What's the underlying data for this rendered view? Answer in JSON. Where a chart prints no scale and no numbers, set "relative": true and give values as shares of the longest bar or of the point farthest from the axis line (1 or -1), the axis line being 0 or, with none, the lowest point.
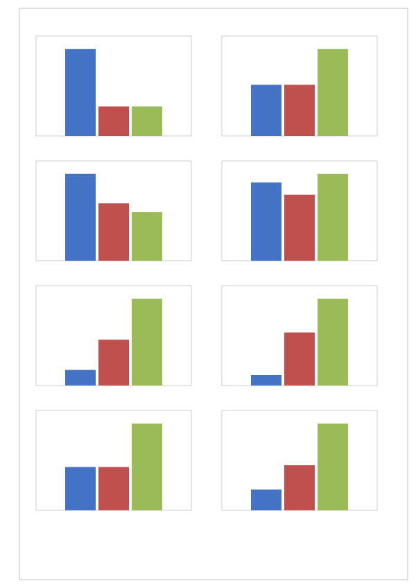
{
  "chart_data": [
    {
      "type": "bar",
      "relative": true,
      "categories": [
        null
      ],
      "series": [
        {
          "color": "#4472c4",
          "values": [
            1
          ]
        },
        {
          "color": "#c0504d",
          "values": [
            0.34
          ]
        },
        {
          "color": "#9bbb59",
          "values": [
            0.34
          ]
        }
      ]
    },
    {
      "type": "bar",
      "relative": true,
      "categories": [
        null
      ],
      "series": [
        {
          "color": "#4472c4",
          "values": [
            0.59
          ]
        },
        {
          "color": "#c0504d",
          "values": [
            0.59
          ]
        },
        {
          "color": "#9bbb59",
          "values": [
            1
          ]
        }
      ]
    },
    {
      "type": "bar",
      "relative": true,
      "categories": [
        null
      ],
      "series": [
        {
          "color": "#4472c4",
          "values": [
            1
          ]
        },
        {
          "color": "#c0504d",
          "values": [
            0.66
          ]
        },
        {
          "color": "#9bbb59",
          "values": [
            0.56
          ]
        }
      ]
    },
    {
      "type": "bar",
      "relative": true,
      "categories": [
        null
      ],
      "series": [
        {
          "color": "#4472c4",
          "values": [
            0.9
          ]
        },
        {
          "color": "#c0504d",
          "values": [
            0.76
          ]
        },
        {
          "color": "#9bbb59",
          "values": [
            1
          ]
        }
      ]
    },
    {
      "type": "bar",
      "relative": true,
      "categories": [
        null
      ],
      "series": [
        {
          "color": "#4472c4",
          "values": [
            0.18
          ]
        },
        {
          "color": "#c0504d",
          "values": [
            0.53
          ]
        },
        {
          "color": "#9bbb59",
          "values": [
            1
          ]
        }
      ]
    },
    {
      "type": "bar",
      "relative": true,
      "categories": [
        null
      ],
      "series": [
        {
          "color": "#4472c4",
          "values": [
            0.12
          ]
        },
        {
          "color": "#c0504d",
          "values": [
            0.61
          ]
        },
        {
          "color": "#9bbb59",
          "values": [
            1
          ]
        }
      ]
    },
    {
      "type": "bar",
      "relative": true,
      "categories": [
        null
      ],
      "series": [
        {
          "color": "#4472c4",
          "values": [
            0.5
          ]
        },
        {
          "color": "#c0504d",
          "values": [
            0.5
          ]
        },
        {
          "color": "#9bbb59",
          "values": [
            1
          ]
        }
      ]
    },
    {
      "type": "bar",
      "relative": true,
      "categories": [
        null
      ],
      "series": [
        {
          "color": "#4472c4",
          "values": [
            0.24
          ]
        },
        {
          "color": "#c0504d",
          "values": [
            0.52
          ]
        },
        {
          "color": "#9bbb59",
          "values": [
            1
          ]
        }
      ]
    }
  ]
}
